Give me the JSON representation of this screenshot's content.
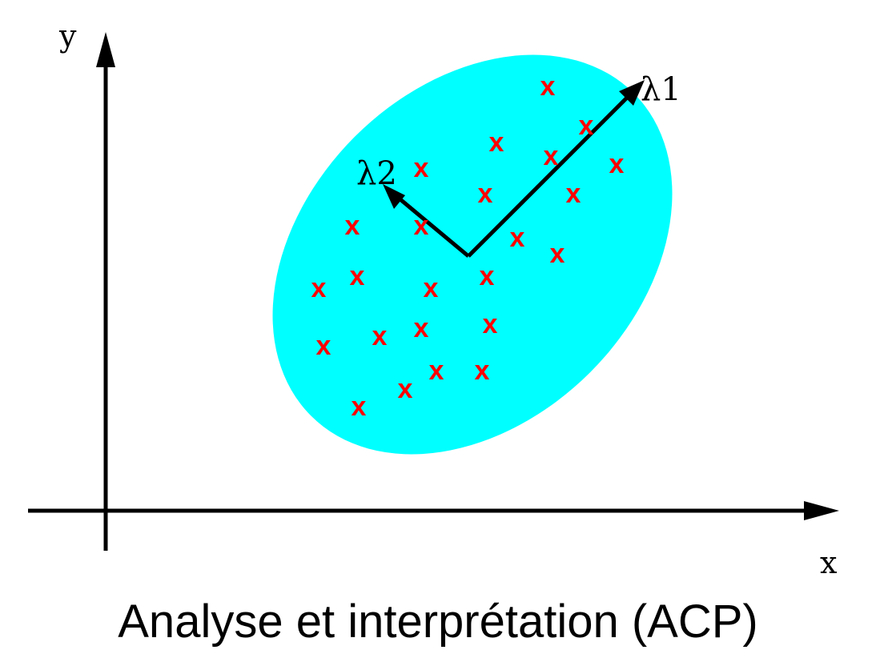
{
  "labels": {
    "x_axis": "x",
    "y_axis": "y",
    "eigen_1": "λ1",
    "eigen_2": "λ2",
    "point_marker": "x"
  },
  "caption": "Analyse et interprétation (ACP)",
  "colors": {
    "ellipse_fill": "#00FFFF",
    "marker": "#FF0000",
    "axis": "#000000"
  }
}
